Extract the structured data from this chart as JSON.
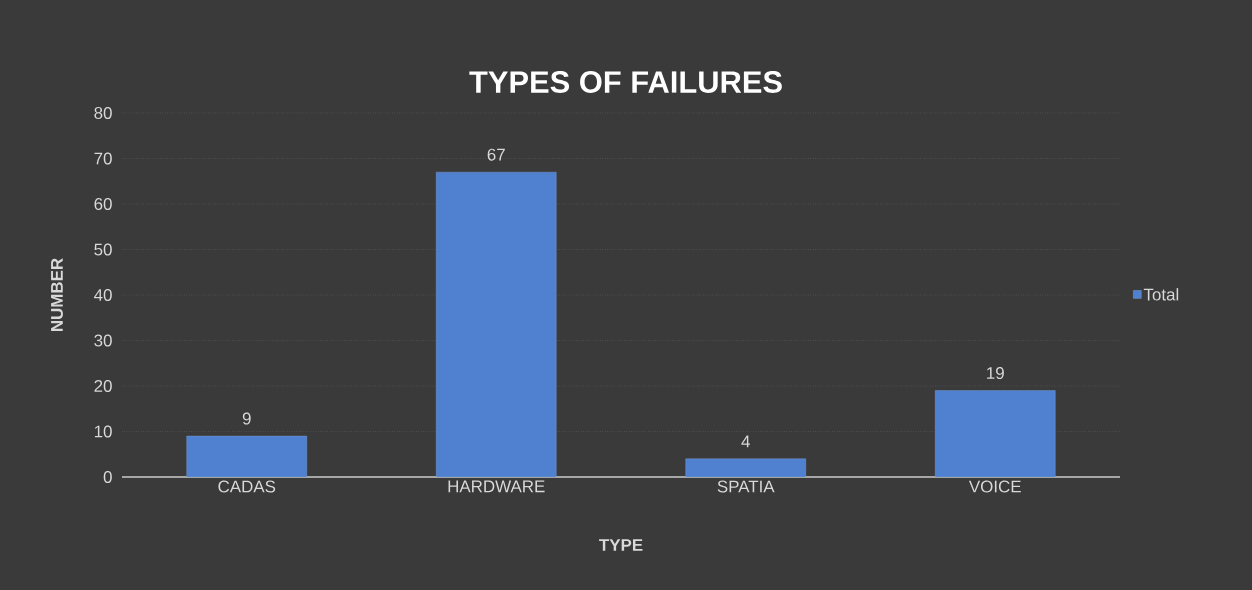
{
  "chart_data": {
    "type": "bar",
    "title": "TYPES OF FAILURES",
    "xlabel": "TYPE",
    "ylabel": "NUMBER",
    "categories": [
      "CADAS",
      "HARDWARE",
      "SPATIA",
      "VOICE"
    ],
    "series": [
      {
        "name": "Total",
        "color": "#4f81d0",
        "values": [
          9,
          67,
          4,
          19
        ]
      }
    ],
    "ylim": [
      0,
      80
    ],
    "yticks": [
      0,
      10,
      20,
      30,
      40,
      50,
      60,
      70,
      80
    ],
    "grid": "y",
    "legend": "right",
    "data_labels": true
  }
}
